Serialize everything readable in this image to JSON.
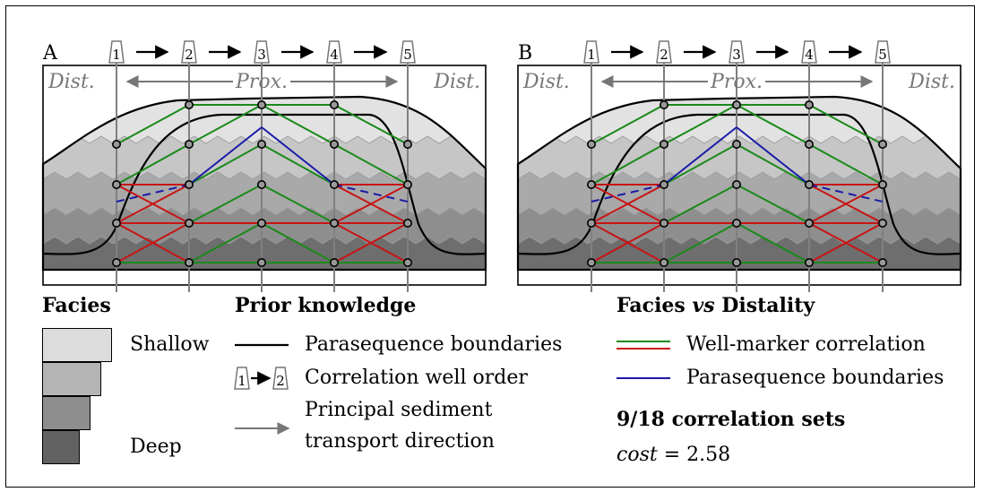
{
  "panels": [
    {
      "letter": "A",
      "well_labels": [
        "1",
        "2",
        "3",
        "4",
        "5"
      ],
      "dist_left": "Dist.",
      "prox": "Prox.",
      "dist_right": "Dist."
    },
    {
      "letter": "B",
      "well_labels": [
        "1",
        "2",
        "3",
        "4",
        "5"
      ],
      "dist_left": "Dist.",
      "prox": "Prox.",
      "dist_right": "Dist."
    }
  ],
  "legend": {
    "facies": {
      "title": "Facies",
      "shallow": "Shallow",
      "deep": "Deep"
    },
    "prior": {
      "title": "Prior knowledge",
      "parasequence": "Parasequence boundaries",
      "well_order": "Correlation well order",
      "order_example": [
        "1",
        "2"
      ],
      "transport_line1": "Principal sediment",
      "transport_line2": "transport direction"
    },
    "fvd": {
      "title_prefix": "Facies ",
      "title_italic": "vs",
      "title_suffix": " Distality",
      "well_marker": "Well-marker correlation",
      "parasequence": "Parasequence boundaries",
      "sets": "9/18 correlation sets",
      "cost_label": "cost",
      "cost_value": "= 2.58"
    }
  },
  "colors": {
    "green": "#1a8a1a",
    "red": "#c81414",
    "blue": "#1a1aa8",
    "well": "#808080",
    "facies": [
      "#e2e2e2",
      "#c6c6c6",
      "#a9a9a9",
      "#8e8e8e",
      "#6e6e6e"
    ]
  }
}
